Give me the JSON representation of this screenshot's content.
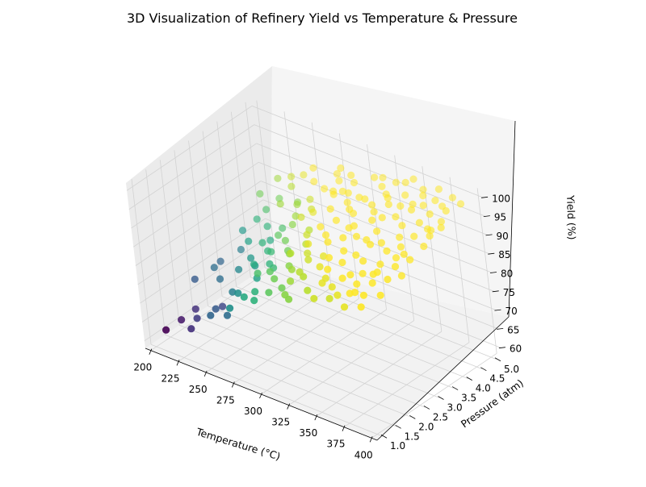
{
  "chart_data": {
    "type": "scatter3d",
    "title": "3D Visualization of Refinery Yield vs Temperature & Pressure",
    "xlabel": "Temperature (°C)",
    "ylabel": "Pressure (atm)",
    "zlabel": "Yield (%)",
    "xlim": [
      195,
      405
    ],
    "ylim": [
      0.8,
      5.2
    ],
    "zlim": [
      58,
      102
    ],
    "xticks": [
      200,
      225,
      250,
      275,
      300,
      325,
      350,
      375,
      400
    ],
    "yticks": [
      1.0,
      1.5,
      2.0,
      2.5,
      3.0,
      3.5,
      4.0,
      4.5,
      5.0
    ],
    "zticks": [
      60,
      65,
      70,
      75,
      80,
      85,
      90,
      95,
      100
    ],
    "xtick_labels": [
      "200",
      "225",
      "250",
      "275",
      "300",
      "325",
      "350",
      "375",
      "400"
    ],
    "ytick_labels": [
      "1.0",
      "1.5",
      "2.0",
      "2.5",
      "3.0",
      "3.5",
      "4.0",
      "4.5",
      "5.0"
    ],
    "ztick_labels": [
      "60",
      "65",
      "70",
      "75",
      "80",
      "85",
      "90",
      "95",
      "100"
    ],
    "colormap": "viridis",
    "grid": true,
    "points": [
      [
        205,
        1.2,
        62
      ],
      [
        212,
        1.5,
        64
      ],
      [
        218,
        1.8,
        66
      ],
      [
        206,
        2.3,
        70
      ],
      [
        214,
        2.7,
        72
      ],
      [
        209,
        3.1,
        71
      ],
      [
        221,
        3.4,
        74
      ],
      [
        232,
        1.1,
        66
      ],
      [
        238,
        2.0,
        68
      ],
      [
        229,
        4.1,
        82
      ],
      [
        243,
        1.6,
        70
      ],
      [
        240,
        2.6,
        75
      ],
      [
        247,
        3.5,
        79
      ],
      [
        251,
        4.4,
        85
      ],
      [
        236,
        4.8,
        88
      ],
      [
        225,
        3.9,
        80
      ],
      [
        219,
        4.3,
        84
      ],
      [
        262,
        1.3,
        72
      ],
      [
        268,
        2.2,
        78
      ],
      [
        258,
        3.0,
        80
      ],
      [
        265,
        3.8,
        86
      ],
      [
        272,
        4.6,
        90
      ],
      [
        255,
        4.9,
        92
      ],
      [
        246,
        4.0,
        86
      ],
      [
        278,
        1.9,
        82
      ],
      [
        283,
        2.8,
        84
      ],
      [
        276,
        3.6,
        88
      ],
      [
        289,
        4.3,
        92
      ],
      [
        292,
        1.2,
        80
      ],
      [
        281,
        4.9,
        95
      ],
      [
        297,
        2.4,
        87
      ],
      [
        302,
        3.3,
        90
      ],
      [
        307,
        4.1,
        93
      ],
      [
        311,
        1.5,
        84
      ],
      [
        315,
        4.8,
        97
      ],
      [
        319,
        2.9,
        90
      ],
      [
        323,
        3.7,
        94
      ],
      [
        328,
        1.1,
        85
      ],
      [
        332,
        2.1,
        89
      ],
      [
        336,
        4.4,
        97
      ],
      [
        341,
        3.1,
        93
      ],
      [
        345,
        1.8,
        89
      ],
      [
        349,
        4.9,
        100
      ],
      [
        353,
        2.6,
        92
      ],
      [
        357,
        3.9,
        96
      ],
      [
        361,
        1.3,
        88
      ],
      [
        365,
        4.6,
        99
      ],
      [
        369,
        2.2,
        91
      ],
      [
        373,
        3.4,
        95
      ],
      [
        377,
        1.6,
        90
      ],
      [
        381,
        4.2,
        98
      ],
      [
        385,
        2.8,
        94
      ],
      [
        389,
        3.8,
        97
      ],
      [
        393,
        1.2,
        90
      ],
      [
        397,
        4.7,
        100
      ],
      [
        400,
        2.4,
        93
      ],
      [
        263,
        1.7,
        76
      ],
      [
        287,
        2.0,
        83
      ],
      [
        301,
        4.6,
        95
      ],
      [
        334,
        3.3,
        94
      ],
      [
        346,
        4.1,
        97
      ],
      [
        358,
        1.9,
        90
      ],
      [
        372,
        4.9,
        100
      ],
      [
        386,
        1.9,
        92
      ],
      [
        398,
        3.3,
        96
      ],
      [
        273,
        3.1,
        84
      ],
      [
        296,
        3.9,
        91
      ],
      [
        318,
        1.9,
        87
      ],
      [
        339,
        2.7,
        91
      ],
      [
        352,
        1.1,
        88
      ],
      [
        364,
        3.1,
        94
      ],
      [
        378,
        2.5,
        93
      ],
      [
        391,
        4.4,
        99
      ],
      [
        258,
        2.5,
        79
      ],
      [
        284,
        4.7,
        93
      ],
      [
        306,
        2.7,
        89
      ],
      [
        327,
        4.6,
        97
      ],
      [
        343,
        3.6,
        95
      ],
      [
        367,
        4.1,
        98
      ],
      [
        395,
        2.1,
        93
      ],
      [
        249,
        1.2,
        71
      ],
      [
        271,
        1.1,
        76
      ],
      [
        294,
        3.1,
        88
      ],
      [
        316,
        2.3,
        88
      ],
      [
        338,
        1.4,
        87
      ],
      [
        362,
        2.5,
        92
      ],
      [
        384,
        3.5,
        96
      ],
      [
        232,
        3.3,
        78
      ],
      [
        244,
        2.9,
        77
      ],
      [
        266,
        4.3,
        88
      ],
      [
        279,
        2.4,
        81
      ],
      [
        309,
        3.6,
        91
      ],
      [
        330,
        4.1,
        95
      ],
      [
        355,
        3.3,
        95
      ],
      [
        376,
        4.6,
        99
      ],
      [
        399,
        3.9,
        98
      ],
      [
        254,
        3.7,
        82
      ],
      [
        288,
        3.4,
        87
      ],
      [
        313,
        4.3,
        94
      ],
      [
        348,
        2.3,
        91
      ],
      [
        371,
        1.9,
        90
      ],
      [
        388,
        1.5,
        91
      ],
      [
        223,
        4.8,
        86
      ],
      [
        241,
        4.6,
        87
      ],
      [
        299,
        1.7,
        84
      ],
      [
        322,
        1.2,
        85
      ],
      [
        344,
        4.8,
        99
      ],
      [
        366,
        1.4,
        89
      ],
      [
        382,
        3.1,
        95
      ],
      [
        396,
        3.6,
        97
      ],
      [
        270,
        2.6,
        80
      ],
      [
        285,
        1.5,
        80
      ],
      [
        304,
        1.3,
        83
      ],
      [
        325,
        2.5,
        89
      ],
      [
        351,
        4.5,
        98
      ],
      [
        374,
        2.9,
        94
      ],
      [
        392,
        2.5,
        94
      ],
      [
        216,
        3.7,
        77
      ],
      [
        234,
        4.4,
        84
      ],
      [
        260,
        4.7,
        90
      ],
      [
        293,
        4.8,
        95
      ],
      [
        312,
        3.1,
        90
      ],
      [
        337,
        3.9,
        95
      ],
      [
        360,
        4.8,
        99
      ],
      [
        380,
        1.1,
        89
      ],
      [
        394,
        4.1,
        98
      ],
      [
        252,
        1.9,
        74
      ],
      [
        275,
        4.0,
        88
      ],
      [
        298,
        2.9,
        87
      ],
      [
        320,
        4.9,
        97
      ],
      [
        342,
        2.0,
        90
      ],
      [
        368,
        3.7,
        96
      ],
      [
        387,
        4.8,
        100
      ],
      [
        227,
        2.4,
        72
      ],
      [
        245,
        4.9,
        89
      ],
      [
        282,
        3.8,
        89
      ],
      [
        308,
        2.0,
        86
      ],
      [
        331,
        3.0,
        92
      ],
      [
        356,
        1.6,
        89
      ],
      [
        379,
        3.9,
        97
      ],
      [
        401,
        1.6,
        92
      ],
      [
        261,
        3.3,
        83
      ],
      [
        290,
        2.6,
        85
      ],
      [
        314,
        3.9,
        93
      ],
      [
        335,
        4.8,
        98
      ],
      [
        359,
        2.9,
        94
      ],
      [
        383,
        2.2,
        93
      ],
      [
        264,
        2.9,
        81
      ],
      [
        317,
        1.6,
        86
      ],
      [
        340,
        4.3,
        97
      ],
      [
        363,
        4.3,
        98
      ],
      [
        390,
        2.9,
        95
      ],
      [
        248,
        3.2,
        80
      ],
      [
        277,
        4.9,
        93
      ],
      [
        303,
        4.3,
        94
      ],
      [
        324,
        1.8,
        87
      ],
      [
        350,
        3.7,
        96
      ],
      [
        375,
        1.5,
        90
      ],
      [
        398,
        2.8,
        95
      ],
      [
        256,
        4.2,
        86
      ],
      [
        286,
        4.4,
        92
      ],
      [
        310,
        2.5,
        88
      ],
      [
        333,
        2.4,
        90
      ],
      [
        354,
        4.2,
        97
      ],
      [
        370,
        4.4,
        98
      ],
      [
        385,
        4.5,
        99
      ],
      [
        237,
        3.8,
        80
      ],
      [
        267,
        3.6,
        85
      ],
      [
        295,
        4.4,
        93
      ],
      [
        321,
        4.2,
        95
      ],
      [
        347,
        1.6,
        89
      ],
      [
        363,
        2.0,
        91
      ],
      [
        379,
        2.2,
        92
      ],
      [
        392,
        3.8,
        97
      ],
      [
        230,
        1.4,
        67
      ],
      [
        253,
        2.7,
        77
      ],
      [
        280,
        1.3,
        79
      ],
      [
        300,
        2.2,
        85
      ],
      [
        326,
        3.4,
        92
      ],
      [
        353,
        3.0,
        94
      ]
    ]
  }
}
